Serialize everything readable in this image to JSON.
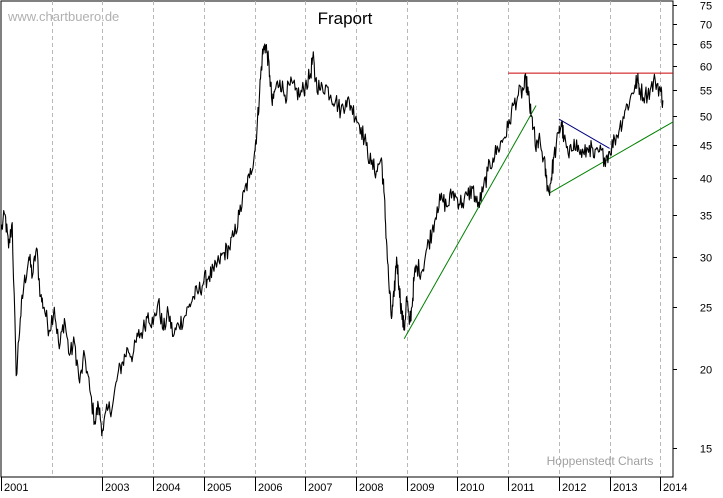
{
  "watermark": "www.chartbuero.de",
  "footer": "Hoppenstedt Charts",
  "chart_data": {
    "type": "line",
    "title": "Fraport",
    "scale": "log",
    "ylim": [
      13.5,
      76
    ],
    "y_ticks": [
      15,
      20,
      25,
      30,
      35,
      40,
      45,
      50,
      55,
      60,
      65,
      70,
      75
    ],
    "x_range": [
      2001.0,
      2014.25
    ],
    "x_tick_labels": [
      {
        "label": "2001",
        "x": 2001.0
      },
      {
        "label": "2003",
        "x": 2003.0
      },
      {
        "label": "2004",
        "x": 2004.0
      },
      {
        "label": "2005",
        "x": 2005.0
      },
      {
        "label": "2006",
        "x": 2006.0
      },
      {
        "label": "2007",
        "x": 2007.0
      },
      {
        "label": "2008",
        "x": 2008.0
      },
      {
        "label": "2009",
        "x": 2009.0
      },
      {
        "label": "2010",
        "x": 2010.0
      },
      {
        "label": "2011",
        "x": 2011.0
      },
      {
        "label": "2012",
        "x": 2012.0
      },
      {
        "label": "2013",
        "x": 2013.0
      },
      {
        "label": "2014",
        "x": 2014.0
      }
    ],
    "grid_x": [
      2002.0,
      2003.0,
      2004.0,
      2005.0,
      2006.0,
      2007.0,
      2008.0,
      2009.0,
      2010.0,
      2011.0,
      2012.0,
      2013.0,
      2014.0
    ],
    "series": [
      {
        "name": "Fraport",
        "color": "#000000",
        "points": [
          [
            2001.0,
            33
          ],
          [
            2001.08,
            35
          ],
          [
            2001.15,
            31
          ],
          [
            2001.22,
            34
          ],
          [
            2001.3,
            19.5
          ],
          [
            2001.38,
            24
          ],
          [
            2001.45,
            27
          ],
          [
            2001.55,
            30
          ],
          [
            2001.62,
            28
          ],
          [
            2001.7,
            31
          ],
          [
            2001.78,
            26
          ],
          [
            2001.85,
            25
          ],
          [
            2001.95,
            23
          ],
          [
            2002.05,
            25
          ],
          [
            2002.15,
            21.5
          ],
          [
            2002.25,
            24
          ],
          [
            2002.35,
            21
          ],
          [
            2002.45,
            22
          ],
          [
            2002.55,
            19
          ],
          [
            2002.65,
            21
          ],
          [
            2002.75,
            18.5
          ],
          [
            2002.85,
            16.5
          ],
          [
            2002.92,
            17.5
          ],
          [
            2003.0,
            16
          ],
          [
            2003.1,
            17.2
          ],
          [
            2003.2,
            17.5
          ],
          [
            2003.3,
            19.5
          ],
          [
            2003.4,
            20.5
          ],
          [
            2003.5,
            21.5
          ],
          [
            2003.6,
            21
          ],
          [
            2003.7,
            22.5
          ],
          [
            2003.8,
            23
          ],
          [
            2003.9,
            24.5
          ],
          [
            2004.0,
            23.5
          ],
          [
            2004.1,
            25.5
          ],
          [
            2004.2,
            23
          ],
          [
            2004.3,
            24.5
          ],
          [
            2004.4,
            22.5
          ],
          [
            2004.5,
            23.5
          ],
          [
            2004.6,
            24
          ],
          [
            2004.7,
            25
          ],
          [
            2004.8,
            26
          ],
          [
            2004.9,
            26.5
          ],
          [
            2005.0,
            27.5
          ],
          [
            2005.1,
            28
          ],
          [
            2005.2,
            28.5
          ],
          [
            2005.3,
            29.5
          ],
          [
            2005.4,
            30.5
          ],
          [
            2005.5,
            31
          ],
          [
            2005.6,
            32.5
          ],
          [
            2005.7,
            35
          ],
          [
            2005.8,
            38
          ],
          [
            2005.9,
            40
          ],
          [
            2006.0,
            44
          ],
          [
            2006.05,
            48
          ],
          [
            2006.1,
            55
          ],
          [
            2006.15,
            62
          ],
          [
            2006.2,
            65
          ],
          [
            2006.25,
            63
          ],
          [
            2006.3,
            58
          ],
          [
            2006.35,
            52
          ],
          [
            2006.4,
            55
          ],
          [
            2006.5,
            57
          ],
          [
            2006.6,
            54
          ],
          [
            2006.7,
            56
          ],
          [
            2006.8,
            55
          ],
          [
            2006.9,
            54
          ],
          [
            2007.0,
            56
          ],
          [
            2007.1,
            58
          ],
          [
            2007.15,
            62
          ],
          [
            2007.2,
            57
          ],
          [
            2007.3,
            55
          ],
          [
            2007.4,
            56
          ],
          [
            2007.5,
            54
          ],
          [
            2007.6,
            53
          ],
          [
            2007.7,
            51
          ],
          [
            2007.8,
            53
          ],
          [
            2007.9,
            52
          ],
          [
            2008.0,
            50
          ],
          [
            2008.1,
            48
          ],
          [
            2008.2,
            45
          ],
          [
            2008.3,
            42
          ],
          [
            2008.4,
            41
          ],
          [
            2008.5,
            43
          ],
          [
            2008.55,
            38
          ],
          [
            2008.6,
            32
          ],
          [
            2008.65,
            27
          ],
          [
            2008.7,
            24
          ],
          [
            2008.75,
            26
          ],
          [
            2008.8,
            30
          ],
          [
            2008.85,
            27
          ],
          [
            2008.9,
            24.5
          ],
          [
            2008.95,
            23
          ],
          [
            2009.0,
            26
          ],
          [
            2009.05,
            23.5
          ],
          [
            2009.1,
            25
          ],
          [
            2009.15,
            28
          ],
          [
            2009.2,
            29
          ],
          [
            2009.3,
            28.5
          ],
          [
            2009.4,
            31
          ],
          [
            2009.5,
            33
          ],
          [
            2009.6,
            36
          ],
          [
            2009.7,
            37
          ],
          [
            2009.8,
            36
          ],
          [
            2009.9,
            38
          ],
          [
            2010.0,
            37
          ],
          [
            2010.1,
            36.5
          ],
          [
            2010.2,
            37.5
          ],
          [
            2010.3,
            38.5
          ],
          [
            2010.4,
            36
          ],
          [
            2010.5,
            38
          ],
          [
            2010.6,
            41
          ],
          [
            2010.7,
            43
          ],
          [
            2010.8,
            44.5
          ],
          [
            2010.9,
            46
          ],
          [
            2011.0,
            48
          ],
          [
            2011.1,
            52
          ],
          [
            2011.2,
            54
          ],
          [
            2011.3,
            55
          ],
          [
            2011.35,
            57
          ],
          [
            2011.4,
            54
          ],
          [
            2011.45,
            50
          ],
          [
            2011.5,
            48
          ],
          [
            2011.55,
            44
          ],
          [
            2011.6,
            46
          ],
          [
            2011.7,
            43
          ],
          [
            2011.75,
            40
          ],
          [
            2011.8,
            38
          ],
          [
            2011.85,
            40
          ],
          [
            2011.9,
            43
          ],
          [
            2012.0,
            47
          ],
          [
            2012.05,
            49
          ],
          [
            2012.1,
            46
          ],
          [
            2012.2,
            43
          ],
          [
            2012.3,
            46
          ],
          [
            2012.4,
            44
          ],
          [
            2012.5,
            43.5
          ],
          [
            2012.6,
            45
          ],
          [
            2012.7,
            43
          ],
          [
            2012.8,
            44
          ],
          [
            2012.9,
            43
          ],
          [
            2013.0,
            44
          ],
          [
            2013.1,
            46
          ],
          [
            2013.2,
            48
          ],
          [
            2013.3,
            51
          ],
          [
            2013.4,
            53
          ],
          [
            2013.5,
            56
          ],
          [
            2013.55,
            57
          ],
          [
            2013.6,
            55
          ],
          [
            2013.7,
            54
          ],
          [
            2013.8,
            55
          ],
          [
            2013.9,
            57
          ],
          [
            2014.0,
            55
          ],
          [
            2014.05,
            53
          ]
        ]
      }
    ],
    "trendlines": [
      {
        "name": "uptrend-2009",
        "color": "#008000",
        "from": [
          2008.95,
          22.3
        ],
        "to": [
          2011.55,
          52
        ]
      },
      {
        "name": "uptrend-2011",
        "color": "#008000",
        "from": [
          2011.8,
          37.8
        ],
        "to": [
          2014.25,
          49
        ]
      },
      {
        "name": "triangle-upper",
        "color": "#000080",
        "from": [
          2012.0,
          49.5
        ],
        "to": [
          2013.0,
          44.5
        ]
      },
      {
        "name": "resistance",
        "color": "#cc0000",
        "from": [
          2011.0,
          58.5
        ],
        "to": [
          2014.25,
          58.5
        ]
      }
    ]
  }
}
